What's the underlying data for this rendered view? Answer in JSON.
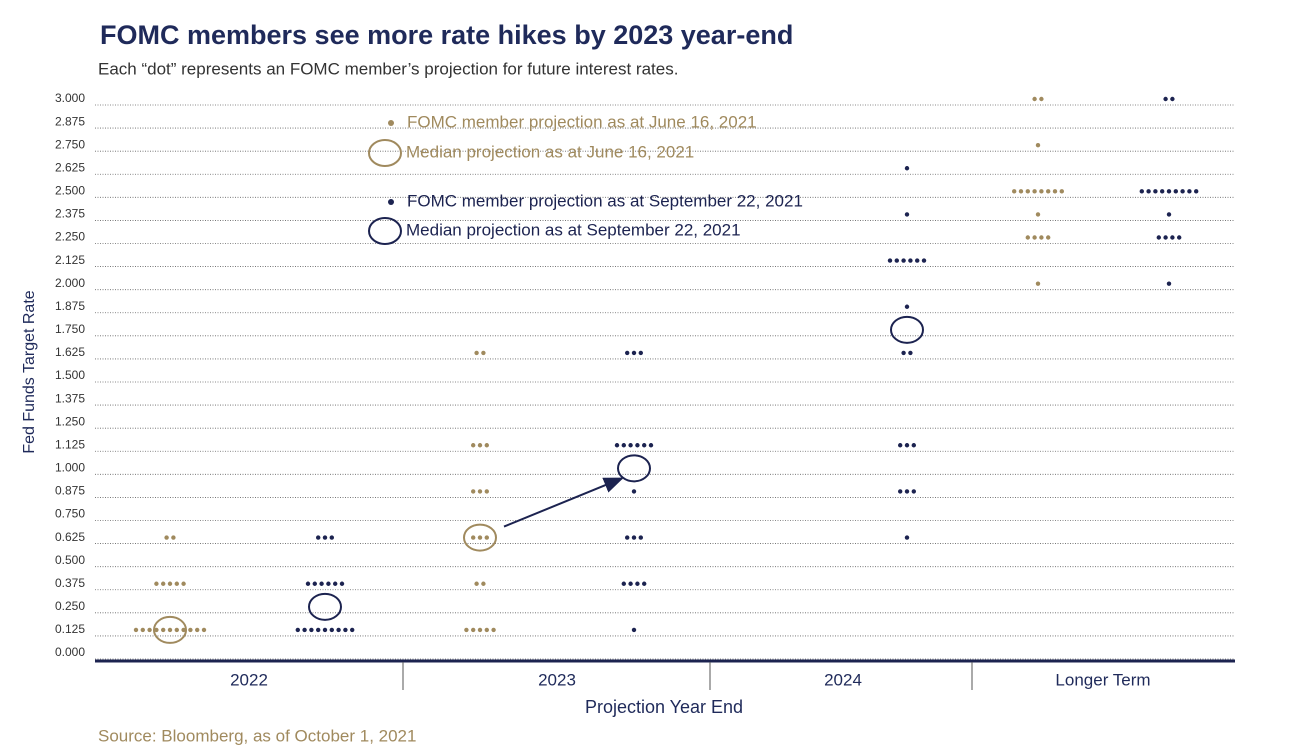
{
  "chart_data": {
    "type": "dot",
    "title": "FOMC members see more rate hikes by 2023 year-end",
    "subtitle": "Each “dot” represents an FOMC member’s projection for future interest rates.",
    "y_label": "Fed Funds Target Rate",
    "x_label": "Projection Year End",
    "source": "Source: Bloomberg, as of October 1, 2021",
    "categories": [
      "2022",
      "2023",
      "2024",
      "Longer Term"
    ],
    "ylim": [
      0,
      3
    ],
    "yticks": [
      {
        "value": 0,
        "label": "0.000"
      },
      {
        "value": 0.125,
        "label": "0.125"
      },
      {
        "value": 0.25,
        "label": "0.250"
      },
      {
        "value": 0.375,
        "label": "0.375"
      },
      {
        "value": 0.5,
        "label": "0.500"
      },
      {
        "value": 0.625,
        "label": "0.625"
      },
      {
        "value": 0.75,
        "label": "0.750"
      },
      {
        "value": 0.875,
        "label": "0.875"
      },
      {
        "value": 1,
        "label": "1.000"
      },
      {
        "value": 1.125,
        "label": "1.125"
      },
      {
        "value": 1.25,
        "label": "1.250"
      },
      {
        "value": 1.375,
        "label": "1.375"
      },
      {
        "value": 1.5,
        "label": "1.500"
      },
      {
        "value": 1.625,
        "label": "1.625"
      },
      {
        "value": 1.75,
        "label": "1.750"
      },
      {
        "value": 1.875,
        "label": "1.875"
      },
      {
        "value": 2,
        "label": "2.000"
      },
      {
        "value": 2.125,
        "label": "2.125"
      },
      {
        "value": 2.25,
        "label": "2.250"
      },
      {
        "value": 2.375,
        "label": "2.375"
      },
      {
        "value": 2.5,
        "label": "2.500"
      },
      {
        "value": 2.625,
        "label": "2.625"
      },
      {
        "value": 2.75,
        "label": "2.750"
      },
      {
        "value": 2.875,
        "label": "2.875"
      },
      {
        "value": 3,
        "label": "3.000"
      }
    ],
    "grid": true,
    "series": [
      {
        "name": "FOMC member projection as at June 16,  2021",
        "median_name": "Median projection as at June 16, 2021",
        "color": "#a08a5e",
        "values": [
          [
            0.625,
            0.625,
            0.375,
            0.375,
            0.375,
            0.375,
            0.375,
            0.125,
            0.125,
            0.125,
            0.125,
            0.125,
            0.125,
            0.125,
            0.125,
            0.125,
            0.125,
            0.125
          ],
          [
            1.625,
            1.625,
            1.125,
            1.125,
            1.125,
            0.875,
            0.875,
            0.875,
            0.625,
            0.625,
            0.625,
            0.375,
            0.375,
            0.125,
            0.125,
            0.125,
            0.125,
            0.125
          ],
          [],
          [
            3,
            3,
            2.75,
            2.5,
            2.5,
            2.5,
            2.5,
            2.5,
            2.5,
            2.5,
            2.5,
            2.375,
            2.25,
            2.25,
            2.25,
            2.25,
            2
          ]
        ],
        "medians": [
          0.125,
          0.625,
          null,
          null
        ]
      },
      {
        "name": "FOMC member projection as at September 22, 2021",
        "median_name": "Median projection as at September 22, 2021",
        "color": "#1c2350",
        "values": [
          [
            0.625,
            0.625,
            0.625,
            0.375,
            0.375,
            0.375,
            0.375,
            0.375,
            0.375,
            0.125,
            0.125,
            0.125,
            0.125,
            0.125,
            0.125,
            0.125,
            0.125,
            0.125
          ],
          [
            1.625,
            1.625,
            1.625,
            1.125,
            1.125,
            1.125,
            1.125,
            1.125,
            1.125,
            0.875,
            0.625,
            0.625,
            0.625,
            0.375,
            0.375,
            0.375,
            0.375,
            0.125
          ],
          [
            2.625,
            2.375,
            2.125,
            2.125,
            2.125,
            2.125,
            2.125,
            2.125,
            1.875,
            1.625,
            1.625,
            1.125,
            1.125,
            1.125,
            0.875,
            0.875,
            0.875,
            0.625
          ],
          [
            3,
            3,
            2.5,
            2.5,
            2.5,
            2.5,
            2.5,
            2.5,
            2.5,
            2.5,
            2.5,
            2.375,
            2.25,
            2.25,
            2.25,
            2.25,
            2
          ]
        ],
        "medians": [
          0.25,
          1,
          1.75,
          null
        ]
      }
    ]
  }
}
